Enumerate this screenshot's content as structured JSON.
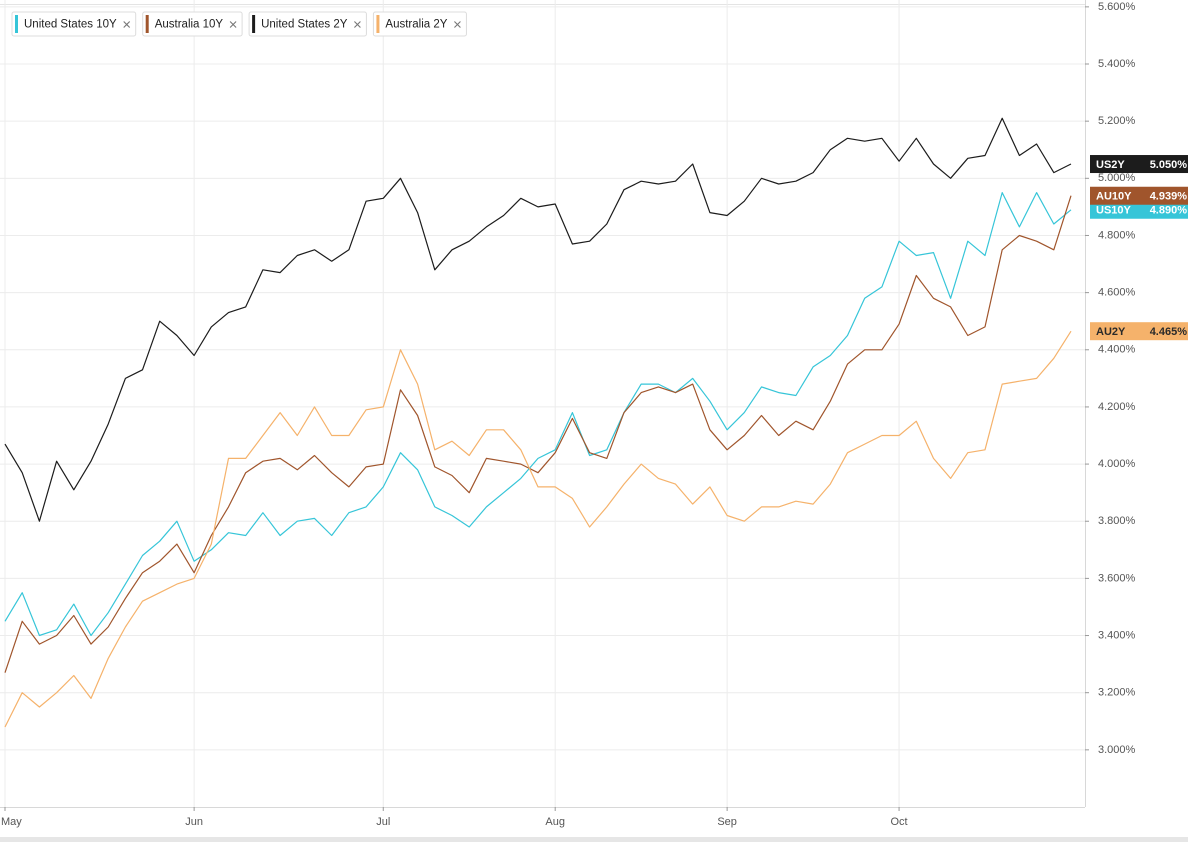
{
  "chart_data": {
    "type": "line",
    "categories": [
      "May",
      null,
      null,
      null,
      null,
      null,
      null,
      null,
      null,
      null,
      null,
      "Jun",
      null,
      null,
      null,
      null,
      null,
      null,
      null,
      null,
      null,
      null,
      "Jul",
      null,
      null,
      null,
      null,
      null,
      null,
      null,
      null,
      null,
      "Aug",
      null,
      null,
      null,
      null,
      null,
      null,
      null,
      null,
      null,
      "Sep",
      null,
      null,
      null,
      null,
      null,
      null,
      null,
      null,
      null,
      "Oct",
      null,
      null,
      null,
      null,
      null,
      null,
      null,
      null,
      null,
      null
    ],
    "ylim": [
      2.8,
      5.61
    ],
    "yticks": [
      {
        "value": 3.0,
        "label": "3.000%"
      },
      {
        "value": 3.2,
        "label": "3.200%"
      },
      {
        "value": 3.4,
        "label": "3.400%"
      },
      {
        "value": 3.6,
        "label": "3.600%"
      },
      {
        "value": 3.8,
        "label": "3.800%"
      },
      {
        "value": 4.0,
        "label": "4.000%"
      },
      {
        "value": 4.2,
        "label": "4.200%"
      },
      {
        "value": 4.4,
        "label": "4.400%"
      },
      {
        "value": 4.6,
        "label": "4.600%"
      },
      {
        "value": 4.8,
        "label": "4.800%"
      },
      {
        "value": 5.0,
        "label": "5.000%"
      },
      {
        "value": 5.2,
        "label": "5.200%"
      },
      {
        "value": 5.4,
        "label": "5.400%"
      },
      {
        "value": 5.6,
        "label": "5.600%"
      }
    ],
    "grid": true,
    "legend": "top-left",
    "series": [
      {
        "name": "United States 10Y",
        "tag": "US10Y",
        "color": "#36c5d8",
        "tag_text_color": "#ffffff",
        "values": [
          3.45,
          3.55,
          3.4,
          3.42,
          3.51,
          3.4,
          3.48,
          3.58,
          3.68,
          3.73,
          3.8,
          3.66,
          3.7,
          3.76,
          3.75,
          3.83,
          3.75,
          3.8,
          3.81,
          3.75,
          3.83,
          3.85,
          3.92,
          4.04,
          3.98,
          3.85,
          3.82,
          3.78,
          3.85,
          3.9,
          3.95,
          4.02,
          4.05,
          4.18,
          4.03,
          4.05,
          4.18,
          4.28,
          4.28,
          4.25,
          4.3,
          4.22,
          4.12,
          4.18,
          4.27,
          4.25,
          4.24,
          4.34,
          4.38,
          4.45,
          4.58,
          4.62,
          4.78,
          4.73,
          4.74,
          4.58,
          4.78,
          4.73,
          4.95,
          4.83,
          4.95,
          4.84,
          4.89
        ],
        "value_labels": [
          null,
          null,
          null,
          null,
          null,
          null,
          null,
          null,
          null,
          null,
          null,
          null,
          null,
          null,
          null,
          null,
          null,
          null,
          null,
          null,
          null,
          null,
          null,
          null,
          null,
          null,
          null,
          null,
          null,
          null,
          null,
          null,
          null,
          null,
          null,
          null,
          null,
          null,
          null,
          null,
          null,
          null,
          null,
          null,
          null,
          null,
          null,
          null,
          null,
          null,
          null,
          null,
          null,
          null,
          null,
          null,
          null,
          null,
          null,
          null,
          null,
          null,
          "4.890%"
        ]
      },
      {
        "name": "Australia 10Y",
        "tag": "AU10Y",
        "color": "#a0552c",
        "tag_text_color": "#ffffff",
        "values": [
          3.27,
          3.45,
          3.37,
          3.4,
          3.47,
          3.37,
          3.43,
          3.53,
          3.62,
          3.66,
          3.72,
          3.62,
          3.75,
          3.85,
          3.97,
          4.01,
          4.02,
          3.98,
          4.03,
          3.97,
          3.92,
          3.99,
          4.0,
          4.26,
          4.17,
          3.99,
          3.96,
          3.9,
          4.02,
          4.01,
          4.0,
          3.97,
          4.04,
          4.16,
          4.04,
          4.02,
          4.18,
          4.25,
          4.27,
          4.25,
          4.28,
          4.12,
          4.05,
          4.1,
          4.17,
          4.1,
          4.15,
          4.12,
          4.22,
          4.35,
          4.4,
          4.4,
          4.49,
          4.66,
          4.58,
          4.55,
          4.45,
          4.48,
          4.75,
          4.8,
          4.78,
          4.75,
          4.939
        ],
        "value_labels": [
          null,
          null,
          null,
          null,
          null,
          null,
          null,
          null,
          null,
          null,
          null,
          null,
          null,
          null,
          null,
          null,
          null,
          null,
          null,
          null,
          null,
          null,
          null,
          null,
          null,
          null,
          null,
          null,
          null,
          null,
          null,
          null,
          null,
          null,
          null,
          null,
          null,
          null,
          null,
          null,
          null,
          null,
          null,
          null,
          null,
          null,
          null,
          null,
          null,
          null,
          null,
          null,
          null,
          null,
          null,
          null,
          null,
          null,
          null,
          null,
          null,
          null,
          "4.939%"
        ]
      },
      {
        "name": "United States 2Y",
        "tag": "US2Y",
        "color": "#1c1c1c",
        "tag_text_color": "#ffffff",
        "values": [
          4.07,
          3.97,
          3.8,
          4.01,
          3.91,
          4.01,
          4.14,
          4.3,
          4.33,
          4.5,
          4.45,
          4.38,
          4.48,
          4.53,
          4.55,
          4.68,
          4.67,
          4.73,
          4.75,
          4.71,
          4.75,
          4.92,
          4.93,
          5.0,
          4.88,
          4.68,
          4.75,
          4.78,
          4.83,
          4.87,
          4.93,
          4.9,
          4.91,
          4.77,
          4.78,
          4.84,
          4.96,
          4.99,
          4.98,
          4.99,
          5.05,
          4.88,
          4.87,
          4.92,
          5.0,
          4.98,
          4.99,
          5.02,
          5.1,
          5.14,
          5.13,
          5.14,
          5.06,
          5.14,
          5.05,
          5.0,
          5.07,
          5.08,
          5.21,
          5.08,
          5.12,
          5.02,
          5.05
        ],
        "value_labels": [
          null,
          null,
          null,
          null,
          null,
          null,
          null,
          null,
          null,
          null,
          null,
          null,
          null,
          null,
          null,
          null,
          null,
          null,
          null,
          null,
          null,
          null,
          null,
          null,
          null,
          null,
          null,
          null,
          null,
          null,
          null,
          null,
          null,
          null,
          null,
          null,
          null,
          null,
          null,
          null,
          null,
          null,
          null,
          null,
          null,
          null,
          null,
          null,
          null,
          null,
          null,
          null,
          null,
          null,
          null,
          null,
          null,
          null,
          null,
          null,
          null,
          null,
          "5.050%"
        ]
      },
      {
        "name": "Australia 2Y",
        "tag": "AU2Y",
        "color": "#f5b26b",
        "tag_text_color": "#2a2a2a",
        "values": [
          3.08,
          3.2,
          3.15,
          3.2,
          3.26,
          3.18,
          3.32,
          3.43,
          3.52,
          3.55,
          3.58,
          3.6,
          3.72,
          4.02,
          4.02,
          4.1,
          4.18,
          4.1,
          4.2,
          4.1,
          4.1,
          4.19,
          4.2,
          4.4,
          4.28,
          4.05,
          4.08,
          4.03,
          4.12,
          4.12,
          4.05,
          3.92,
          3.92,
          3.88,
          3.78,
          3.85,
          3.93,
          4.0,
          3.95,
          3.93,
          3.86,
          3.92,
          3.82,
          3.8,
          3.85,
          3.85,
          3.87,
          3.86,
          3.93,
          4.04,
          4.07,
          4.1,
          4.1,
          4.15,
          4.02,
          3.95,
          4.04,
          4.05,
          4.28,
          4.29,
          4.3,
          4.37,
          4.465
        ],
        "value_labels": [
          null,
          null,
          null,
          null,
          null,
          null,
          null,
          null,
          null,
          null,
          null,
          null,
          null,
          null,
          null,
          null,
          null,
          null,
          null,
          null,
          null,
          null,
          null,
          null,
          null,
          null,
          null,
          null,
          null,
          null,
          null,
          null,
          null,
          null,
          null,
          null,
          null,
          null,
          null,
          null,
          null,
          null,
          null,
          null,
          null,
          null,
          null,
          null,
          null,
          null,
          null,
          null,
          null,
          null,
          null,
          null,
          null,
          null,
          null,
          null,
          null,
          null,
          "4.465%"
        ]
      }
    ]
  }
}
